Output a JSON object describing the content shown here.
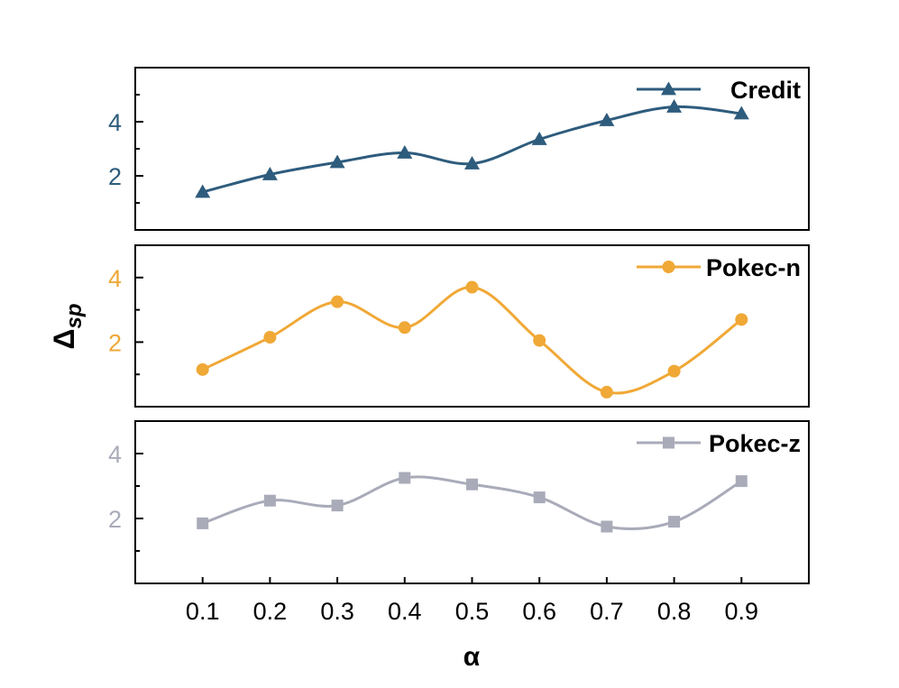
{
  "chart_data": {
    "type": "line",
    "x": [
      0.1,
      0.2,
      0.3,
      0.4,
      0.5,
      0.6,
      0.7,
      0.8,
      0.9
    ],
    "x_tick_labels": [
      "0.1",
      "0.2",
      "0.3",
      "0.4",
      "0.5",
      "0.6",
      "0.7",
      "0.8",
      "0.9"
    ],
    "xlabel": "α",
    "ylabel_main": "Δ",
    "ylabel_sub": "sp",
    "xlim": [
      0.0,
      1.0
    ],
    "legend_position": "top-right",
    "smoothed": true,
    "panels": [
      {
        "name": "Credit",
        "color": "#2e5c7d",
        "marker": "triangle",
        "ylim": [
          0.0,
          6.0
        ],
        "y_ticks": [
          2,
          4
        ],
        "y_tick_labels": [
          "2",
          "4"
        ],
        "values": [
          1.4,
          2.05,
          2.5,
          2.85,
          2.45,
          3.35,
          4.05,
          4.55,
          4.3
        ]
      },
      {
        "name": "Pokec-n",
        "color": "#f0a836",
        "marker": "circle",
        "ylim": [
          0.0,
          5.0
        ],
        "y_ticks": [
          2,
          4
        ],
        "y_tick_labels": [
          "2",
          "4"
        ],
        "values": [
          1.15,
          2.15,
          3.25,
          2.45,
          3.7,
          2.05,
          0.45,
          1.1,
          2.7
        ]
      },
      {
        "name": "Pokec-z",
        "color": "#a9abb9",
        "marker": "square",
        "ylim": [
          0.0,
          5.0
        ],
        "y_ticks": [
          2,
          4
        ],
        "y_tick_labels": [
          "2",
          "4"
        ],
        "values": [
          1.85,
          2.55,
          2.4,
          3.25,
          3.05,
          2.65,
          1.75,
          1.9,
          3.15
        ]
      }
    ]
  }
}
